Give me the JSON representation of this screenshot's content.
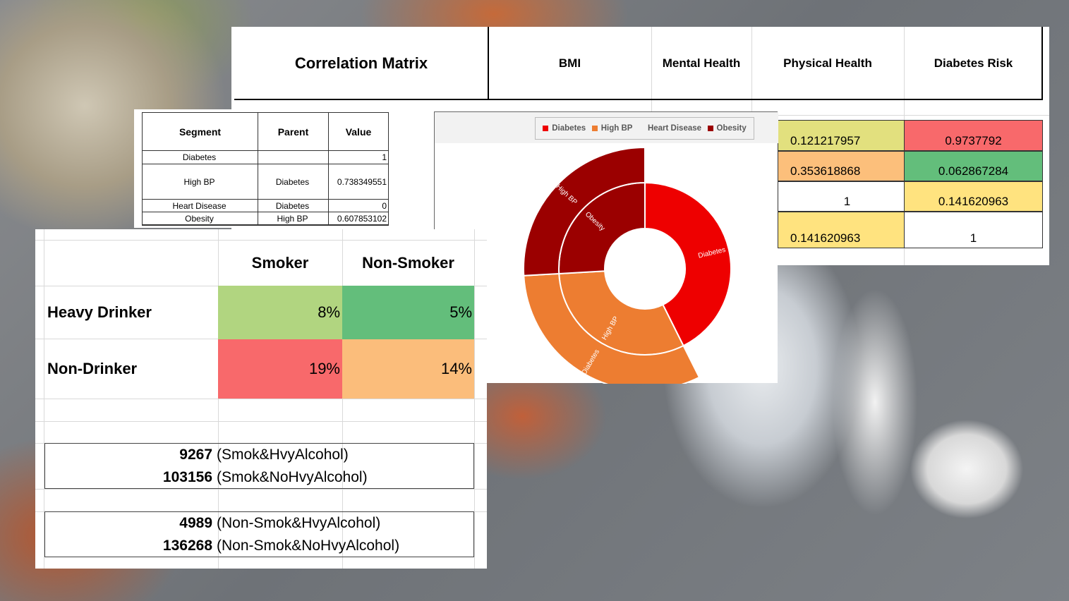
{
  "correlation_matrix": {
    "title": "Correlation Matrix",
    "columns": [
      "BMI",
      "Mental Health",
      "Physical Health",
      "Diabetes Risk"
    ],
    "rows": [
      {
        "physical_health": "0.121217957",
        "diabetes_risk": "0.9737792",
        "colors": [
          "#e2e07e",
          "#f8696b"
        ]
      },
      {
        "physical_health": "0.353618868",
        "diabetes_risk": "0.062867284",
        "colors": [
          "#fcbf7b",
          "#63be7b"
        ]
      },
      {
        "physical_health": "1",
        "diabetes_risk": "0.141620963",
        "colors": [
          "#ffffff",
          "#ffe37f"
        ]
      },
      {
        "physical_health": "0.141620963",
        "diabetes_risk": "1",
        "colors": [
          "#ffe37f",
          "#ffffff"
        ]
      }
    ]
  },
  "segment_table": {
    "headers": [
      "Segment",
      "Parent",
      "Value"
    ],
    "rows": [
      {
        "segment": "Diabetes",
        "parent": "",
        "value": "1"
      },
      {
        "segment": "High BP",
        "parent": "Diabetes",
        "value": "0.738349551"
      },
      {
        "segment": "Heart Disease",
        "parent": "Diabetes",
        "value": "0"
      },
      {
        "segment": "Obesity",
        "parent": "High BP",
        "value": "0.607853102"
      }
    ]
  },
  "chart_data": {
    "type": "sunburst",
    "legend": [
      {
        "name": "Diabetes",
        "color": "#ee0000"
      },
      {
        "name": "High BP",
        "color": "#ed7d31"
      },
      {
        "name": "Heart Disease",
        "color": ""
      },
      {
        "name": "Obesity",
        "color": "#9b0000"
      }
    ],
    "legend_position": "top",
    "segments": [
      {
        "name": "Diabetes",
        "parent": "",
        "value": 1,
        "color": "#ee0000"
      },
      {
        "name": "High BP",
        "parent": "Diabetes",
        "value": 0.738349551,
        "color": "#ed7d31"
      },
      {
        "name": "Heart Disease",
        "parent": "Diabetes",
        "value": 0,
        "color": ""
      },
      {
        "name": "Obesity",
        "parent": "High BP",
        "value": 0.607853102,
        "color": "#9b0000"
      }
    ]
  },
  "smoker_table": {
    "columns": [
      "Smoker",
      "Non-Smoker"
    ],
    "rows": [
      {
        "label": "Heavy Drinker",
        "values": [
          "8%",
          "5%"
        ],
        "colors": [
          "#b1d580",
          "#63be7b"
        ]
      },
      {
        "label": "Non-Drinker",
        "values": [
          "19%",
          "14%"
        ],
        "colors": [
          "#f8696b",
          "#fbbd7b"
        ]
      }
    ],
    "counts": [
      [
        {
          "n": "9267",
          "label": "(Smok&HvyAlcohol)"
        },
        {
          "n": "103156",
          "label": "(Smok&NoHvyAlcohol)"
        }
      ],
      [
        {
          "n": "4989",
          "label": "(Non-Smok&HvyAlcohol)"
        },
        {
          "n": "136268",
          "label": "(Non-Smok&NoHvyAlcohol)"
        }
      ]
    ]
  }
}
